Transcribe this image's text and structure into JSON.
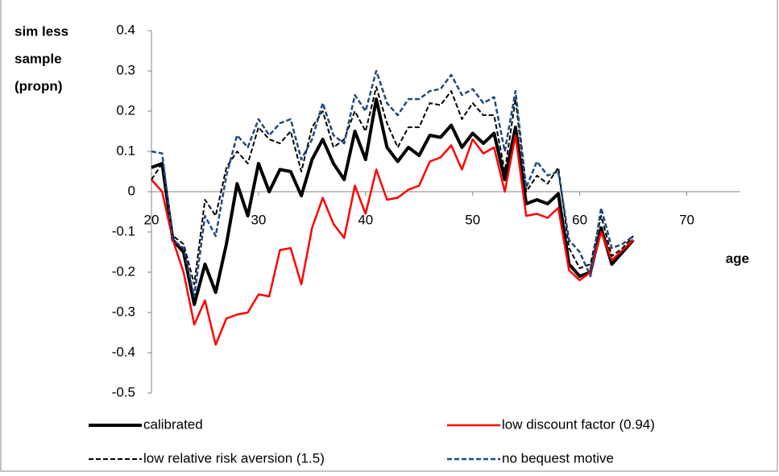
{
  "chart_data": {
    "type": "line",
    "ylabel": [
      "sim less",
      "sample",
      "(propn)"
    ],
    "xlabel": "age",
    "x": [
      20,
      21,
      22,
      23,
      24,
      25,
      26,
      27,
      28,
      29,
      30,
      31,
      32,
      33,
      34,
      35,
      36,
      37,
      38,
      39,
      40,
      41,
      42,
      43,
      44,
      45,
      46,
      47,
      48,
      49,
      50,
      51,
      52,
      53,
      54,
      55,
      56,
      57,
      58,
      59,
      60,
      61,
      62,
      63,
      64,
      65
    ],
    "xlim": [
      20,
      75
    ],
    "xticks": [
      20,
      30,
      40,
      50,
      60,
      70
    ],
    "ylim": [
      -0.5,
      0.4
    ],
    "yticks": [
      -0.5,
      -0.4,
      -0.3,
      -0.2,
      -0.1,
      0,
      0.1,
      0.2,
      0.3,
      0.4
    ],
    "series": [
      {
        "name": "calibrated",
        "color": "#000000",
        "width": 4,
        "dash": false,
        "values": [
          0.06,
          0.07,
          -0.12,
          -0.15,
          -0.28,
          -0.18,
          -0.25,
          -0.13,
          0.02,
          -0.06,
          0.07,
          0.0,
          0.055,
          0.05,
          -0.01,
          0.08,
          0.13,
          0.07,
          0.03,
          0.15,
          0.08,
          0.23,
          0.11,
          0.075,
          0.11,
          0.09,
          0.14,
          0.135,
          0.165,
          0.11,
          0.145,
          0.12,
          0.145,
          0.03,
          0.16,
          -0.03,
          -0.02,
          -0.03,
          -0.005,
          -0.18,
          -0.21,
          -0.2,
          -0.09,
          -0.18,
          -0.15,
          -0.12
        ]
      },
      {
        "name": "low discount factor (0.94)",
        "color": "#ff0000",
        "width": 2.5,
        "dash": false,
        "values": [
          0.03,
          0.0,
          -0.12,
          -0.2,
          -0.33,
          -0.27,
          -0.38,
          -0.315,
          -0.305,
          -0.3,
          -0.255,
          -0.26,
          -0.145,
          -0.14,
          -0.23,
          -0.09,
          -0.015,
          -0.08,
          -0.115,
          0.015,
          -0.055,
          0.055,
          -0.02,
          -0.015,
          0.005,
          0.015,
          0.075,
          0.085,
          0.115,
          0.055,
          0.13,
          0.095,
          0.11,
          0.0,
          0.14,
          -0.06,
          -0.055,
          -0.065,
          -0.04,
          -0.195,
          -0.22,
          -0.2,
          -0.1,
          -0.17,
          -0.145,
          -0.12
        ]
      },
      {
        "name": "low relative risk aversion (1.5)",
        "color": "#000000",
        "width": 2,
        "dash": true,
        "values": [
          0.03,
          0.07,
          -0.11,
          -0.13,
          -0.23,
          -0.02,
          -0.06,
          0.06,
          0.1,
          0.07,
          0.16,
          0.13,
          0.12,
          0.15,
          0.05,
          0.16,
          0.2,
          0.11,
          0.13,
          0.2,
          0.15,
          0.26,
          0.17,
          0.11,
          0.16,
          0.16,
          0.22,
          0.215,
          0.25,
          0.18,
          0.22,
          0.19,
          0.19,
          0.05,
          0.23,
          0.0,
          0.04,
          0.02,
          0.06,
          -0.14,
          -0.19,
          -0.18,
          -0.06,
          -0.16,
          -0.14,
          -0.11
        ]
      },
      {
        "name": "no bequest motive",
        "color": "#1f497d",
        "width": 2.5,
        "dash": true,
        "values": [
          0.1,
          0.095,
          -0.12,
          -0.14,
          -0.26,
          -0.06,
          -0.11,
          0.04,
          0.14,
          0.11,
          0.18,
          0.14,
          0.17,
          0.18,
          0.08,
          0.13,
          0.22,
          0.14,
          0.12,
          0.24,
          0.2,
          0.3,
          0.22,
          0.19,
          0.23,
          0.23,
          0.25,
          0.255,
          0.29,
          0.24,
          0.255,
          0.22,
          0.235,
          0.1,
          0.25,
          0.01,
          0.075,
          0.04,
          0.05,
          -0.12,
          -0.15,
          -0.21,
          -0.04,
          -0.14,
          -0.13,
          -0.11
        ]
      }
    ]
  }
}
